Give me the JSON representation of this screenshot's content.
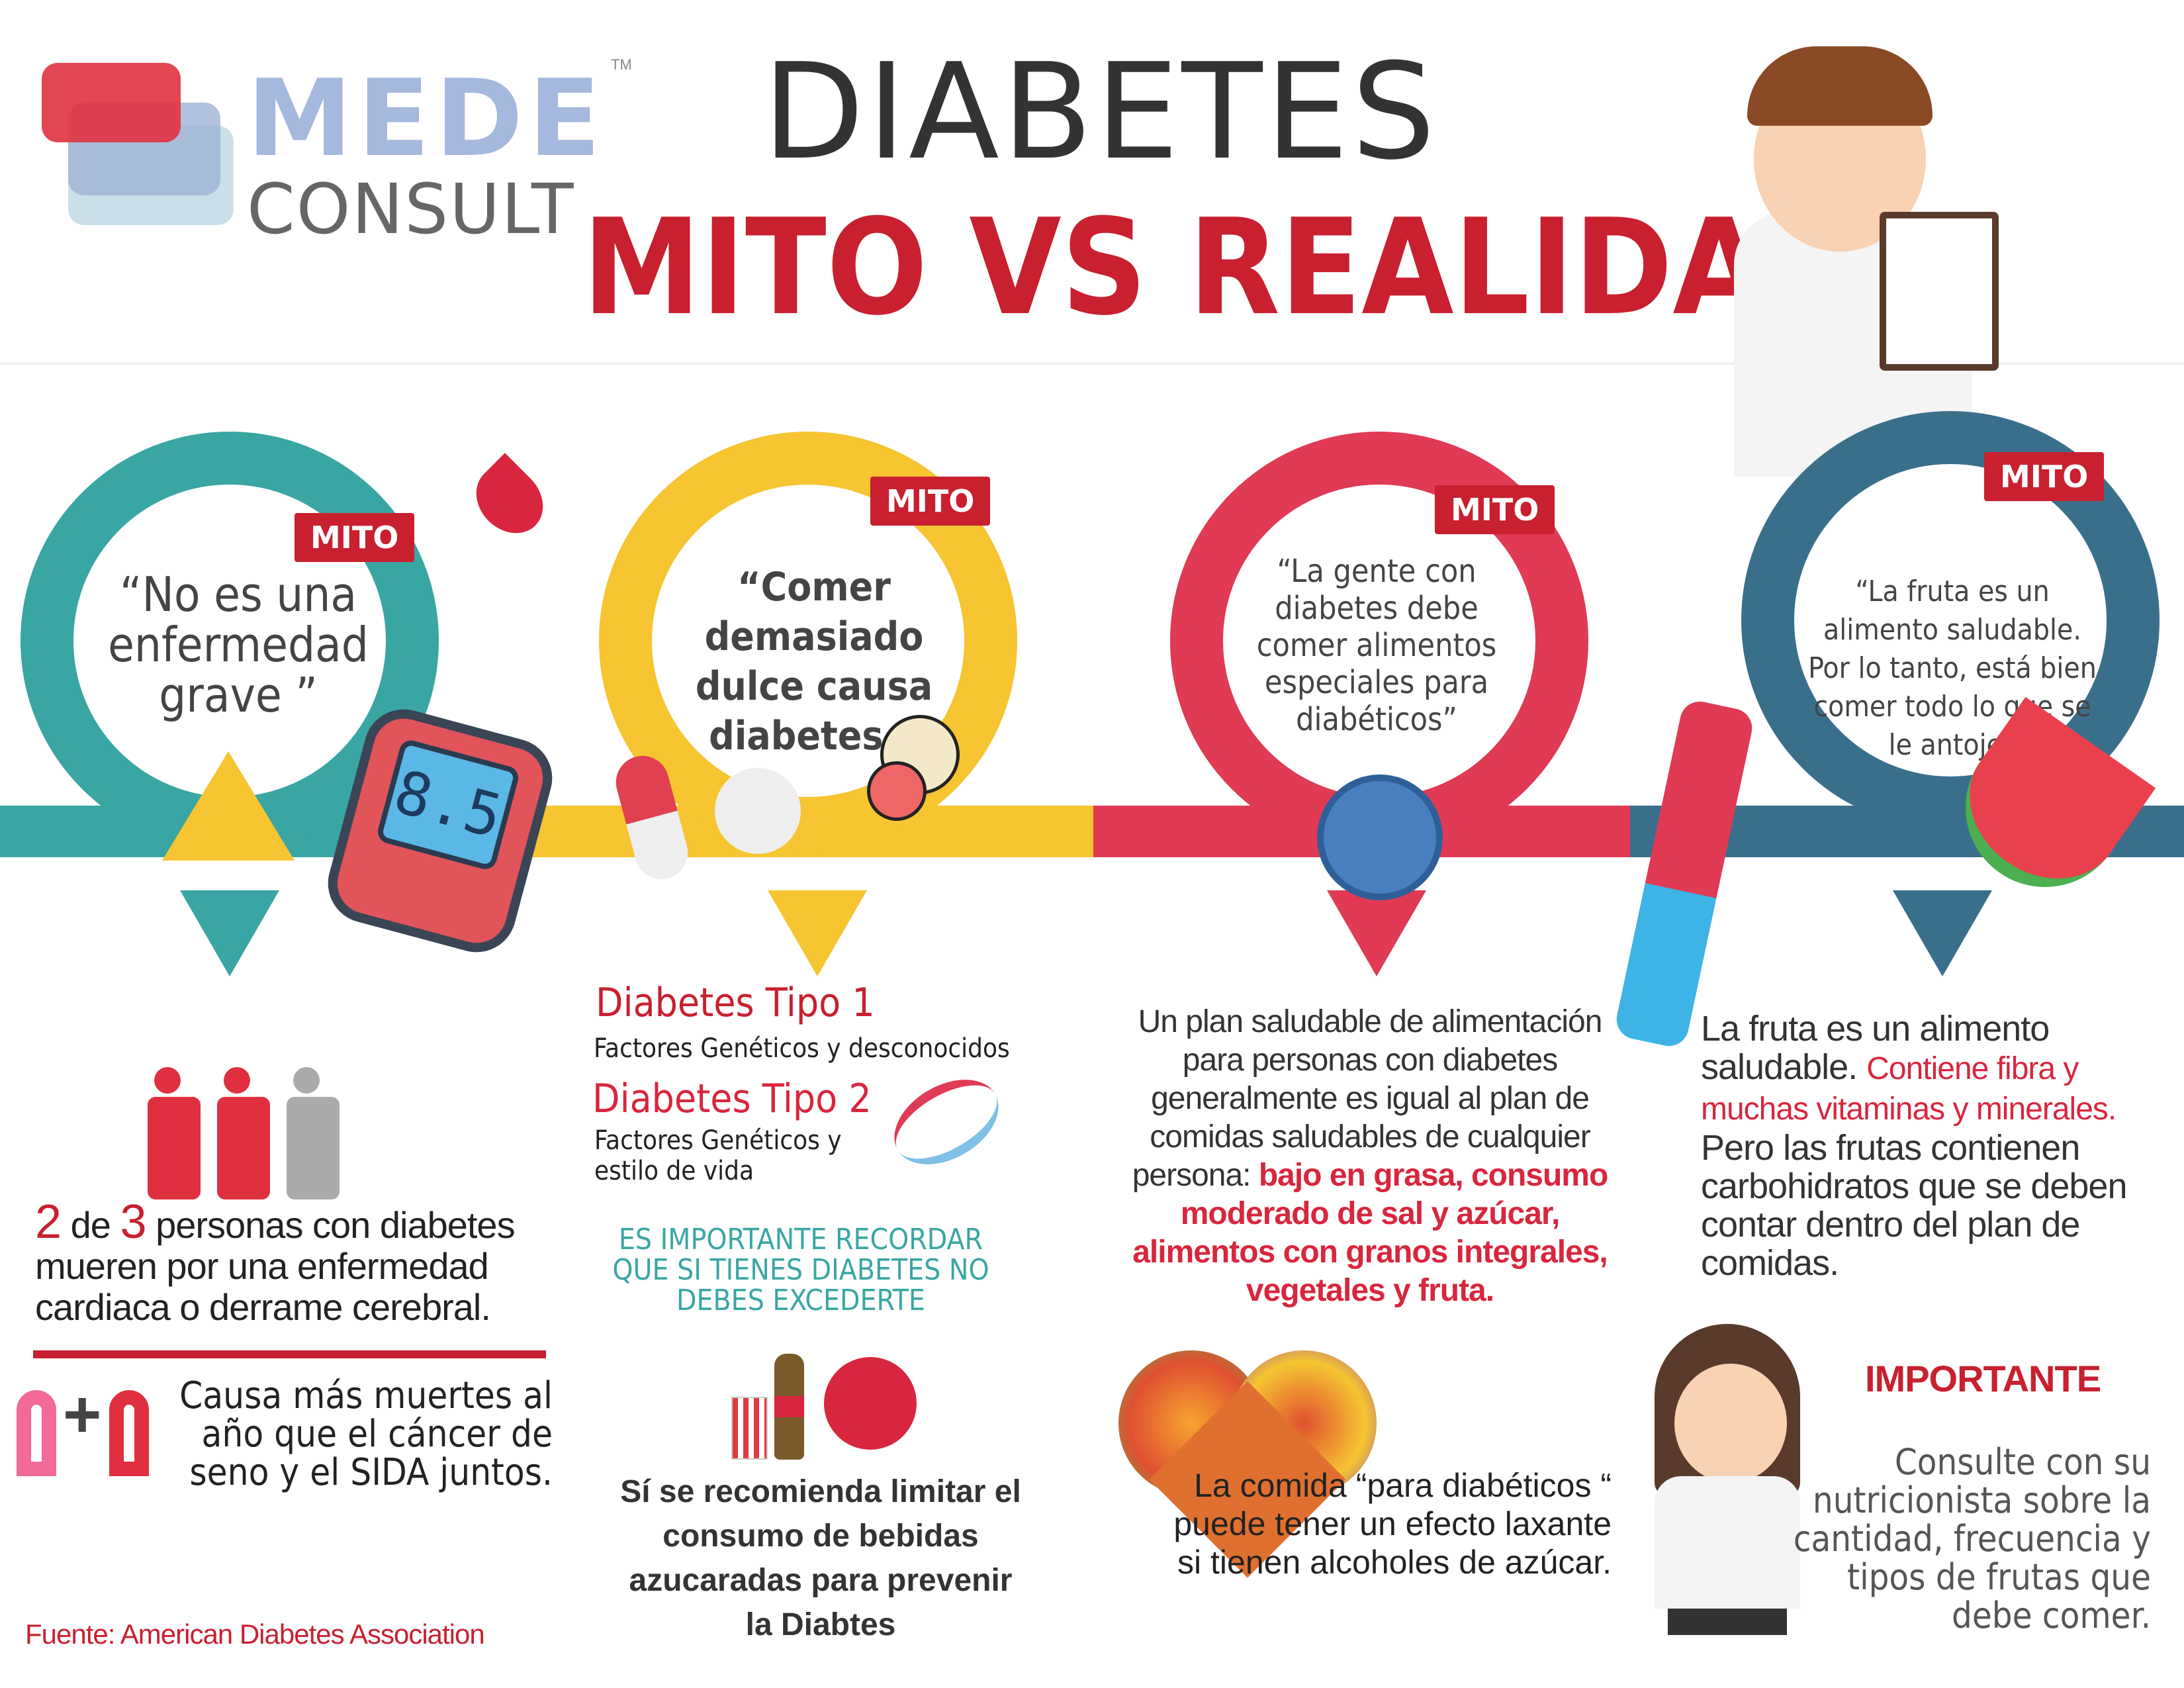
{
  "logo": {
    "line1": "MEDE",
    "line2": "CONSULT",
    "tm": "TM"
  },
  "header": {
    "title": "DIABETES",
    "subtitle": "MITO VS REALIDAD"
  },
  "colors": {
    "teal": "#3aa6a3",
    "yellow": "#f6c531",
    "red": "#e03a55",
    "blue": "#3a6f8c",
    "title_red": "#c8202f"
  },
  "myths": [
    {
      "badge": "MITO",
      "quote": "“No es una enfermedad grave ”"
    },
    {
      "badge": "MITO",
      "quote": "“Comer demasiado dulce causa diabetes ”"
    },
    {
      "badge": "MITO",
      "quote": "“La gente con diabetes debe comer alimentos especiales para diabéticos”"
    },
    {
      "badge": "MITO",
      "quote": "“La fruta es un alimento saludable. Por lo tanto, está bien comer todo lo que se le antoje”"
    }
  ],
  "meter": {
    "reading": "8.5"
  },
  "col1": {
    "stat_num1": "2",
    "stat_de": "de",
    "stat_num2": "3",
    "stat_rest": "personas con diabetes mueren por una enfermedad cardiaca  o derrame cerebral.",
    "plus": "+",
    "cancer": "Causa más muertes al año que el cáncer de seno y el SIDA juntos.",
    "source": "Fuente: American Diabetes Association"
  },
  "col2": {
    "tipo1_title": "Diabetes Tipo 1",
    "tipo1_text": "Factores Genéticos y desconocidos",
    "tipo2_title": "Diabetes Tipo 2",
    "tipo2_text": "Factores Genéticos y estilo de vida",
    "reminder": "ES IMPORTANTE RECORDAR QUE SI TIENES DIABETES NO DEBES EXCEDERTE",
    "drinks": "Sí se recomienda limitar el consumo de bebidas azucaradas para prevenir la Diabtes"
  },
  "col3": {
    "plan_dark": "Un plan saludable de alimentación para personas con diabetes generalmente es igual al plan de comidas saludables de cualquier persona:",
    "plan_red": "bajo en grasa, consumo moderado de sal y azúcar, alimentos con granos integrales, vegetales y fruta.",
    "laxante": "La comida “para diabéticos “ puede tener un efecto laxante si tienen alcoholes de azúcar."
  },
  "col4": {
    "fruit_a": "La fruta es un alimento saludable.",
    "fruit_red": "Contiene fibra y muchas vitaminas y  minerales.",
    "fruit_b": "Pero las frutas contienen carbohidratos que se deben contar dentro del plan de comidas.",
    "important_title": "IMPORTANTE",
    "important_text": "Consulte con su nutricionista sobre la cantidad, frecuencia y tipos de frutas que debe comer."
  }
}
